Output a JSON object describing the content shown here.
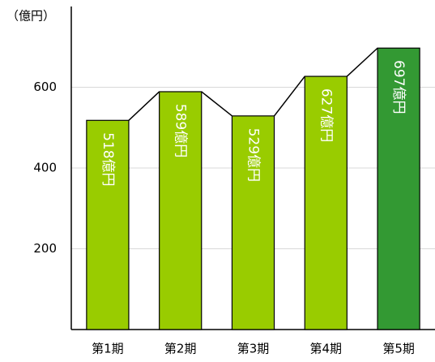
{
  "chart_data": {
    "type": "bar",
    "y_unit": "（億円）",
    "categories": [
      "第1期",
      "第2期",
      "第3期",
      "第4期",
      "第5期"
    ],
    "values": [
      518,
      589,
      529,
      627,
      697
    ],
    "value_labels": [
      "518億円",
      "589億円",
      "529億円",
      "627億円",
      "697億円"
    ],
    "colors": [
      "#99cc00",
      "#99cc00",
      "#99cc00",
      "#99cc00",
      "#339933"
    ],
    "ylim": [
      0,
      800
    ],
    "yticks": [
      200,
      400,
      600
    ],
    "grid": true,
    "connectors": true
  }
}
